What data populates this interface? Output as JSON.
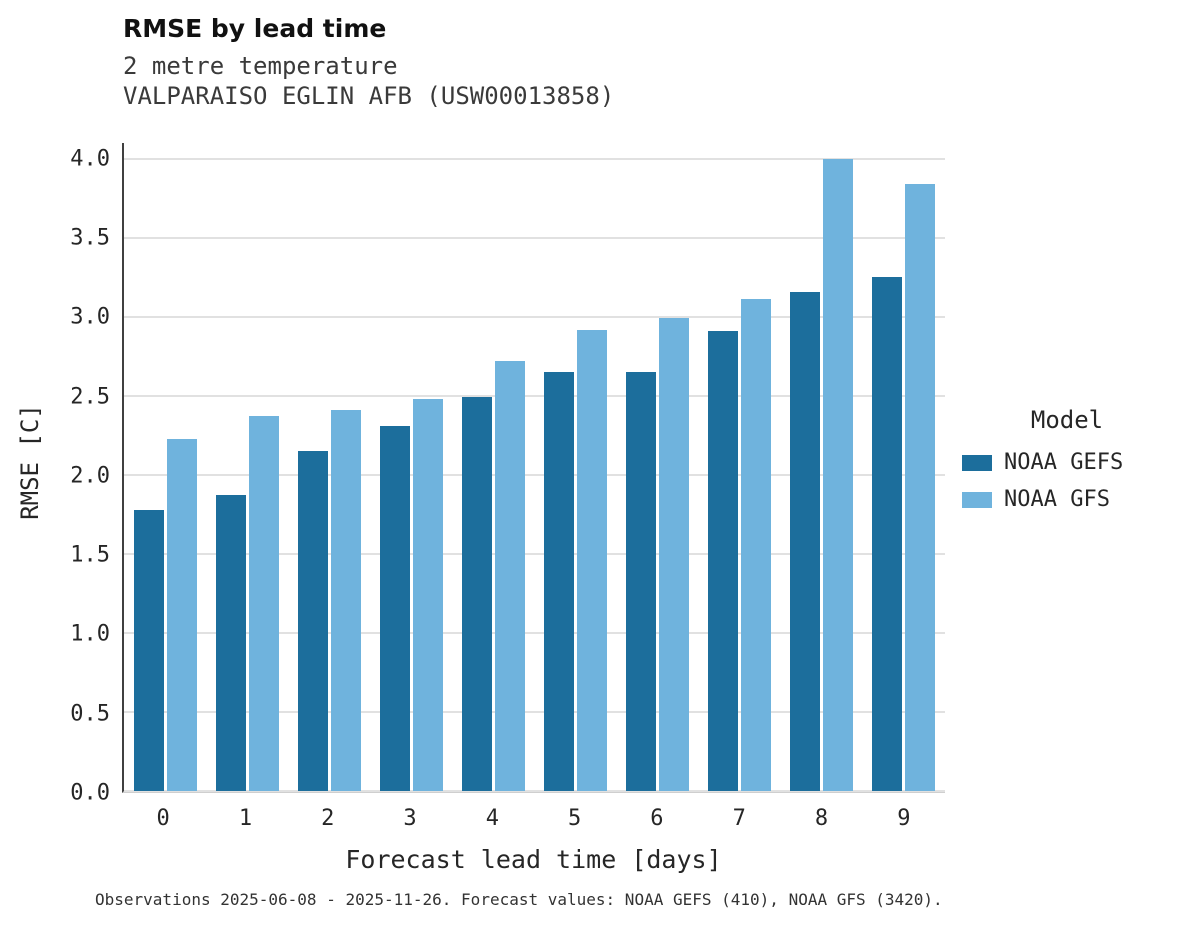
{
  "title": "RMSE by lead time",
  "subtitle1": "2 metre temperature",
  "subtitle2": "VALPARAISO EGLIN AFB (USW00013858)",
  "footer": "Observations 2025-06-08 - 2025-11-26. Forecast values: NOAA GEFS (410), NOAA GFS (3420).",
  "legend": {
    "title": "Model",
    "items": [
      {
        "label": "NOAA GEFS",
        "color": "#1c6e9c"
      },
      {
        "label": "NOAA GFS",
        "color": "#6fb3dd"
      }
    ]
  },
  "chart_data": {
    "type": "bar",
    "title": "RMSE by lead time",
    "categories": [
      0,
      1,
      2,
      3,
      4,
      5,
      6,
      7,
      8,
      9
    ],
    "series": [
      {
        "name": "NOAA GEFS",
        "color": "#1c6e9c",
        "values": [
          1.78,
          1.87,
          2.15,
          2.31,
          2.49,
          2.65,
          2.65,
          2.91,
          3.16,
          3.25
        ]
      },
      {
        "name": "NOAA GFS",
        "color": "#6fb3dd",
        "values": [
          2.23,
          2.37,
          2.41,
          2.48,
          2.72,
          2.92,
          2.99,
          3.11,
          4.0,
          3.84
        ]
      }
    ],
    "xlabel": "Forecast lead time [days]",
    "ylabel": "RMSE [C]",
    "ylim": [
      0.0,
      4.0
    ],
    "yticks": [
      0.0,
      0.5,
      1.0,
      1.5,
      2.0,
      2.5,
      3.0,
      3.5,
      4.0
    ],
    "grid": true,
    "legend_position": "right"
  }
}
